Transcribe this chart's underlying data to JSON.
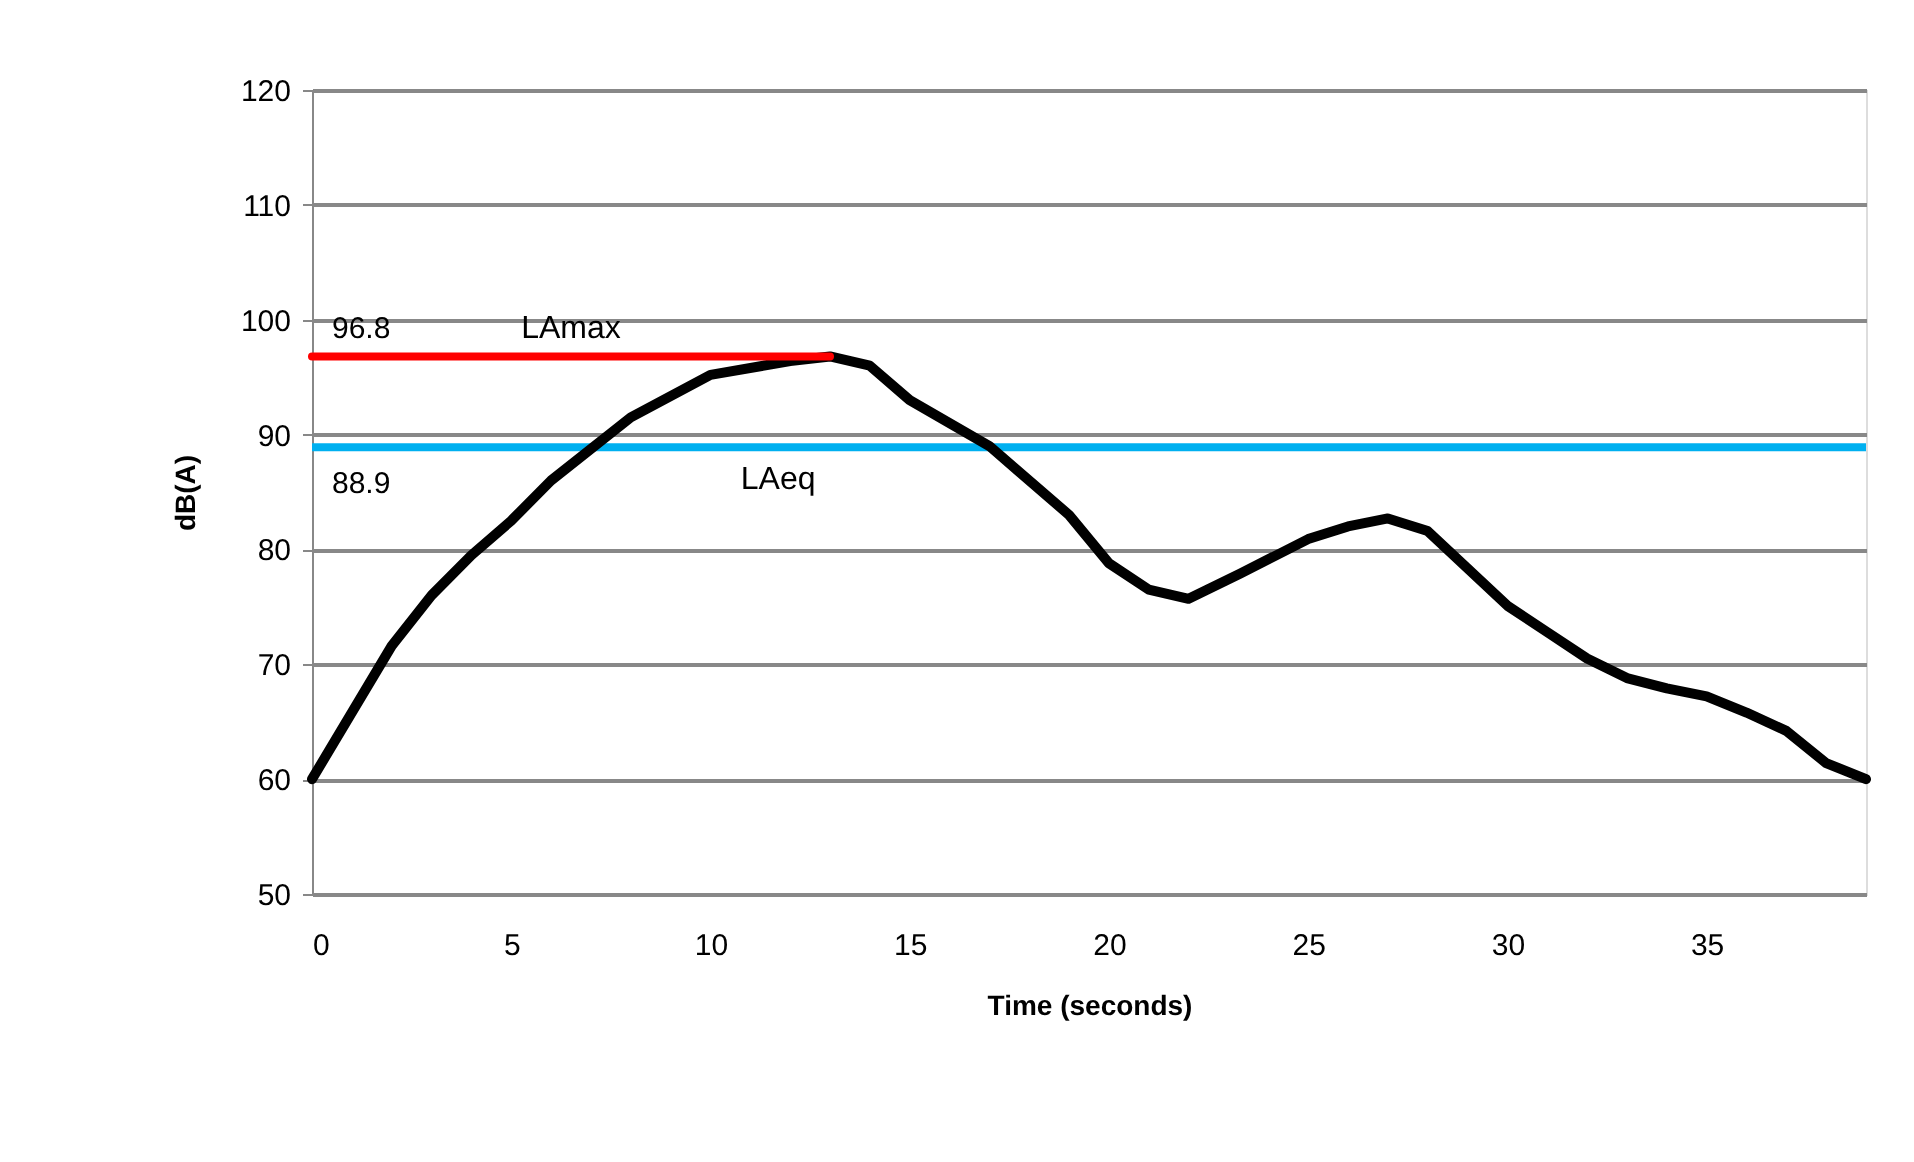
{
  "chart_data": {
    "type": "line",
    "xlabel": "Time (seconds)",
    "ylabel": "dB(A)",
    "xlim": [
      0,
      39
    ],
    "xticks": [
      0,
      5,
      10,
      15,
      20,
      25,
      30,
      35
    ],
    "ylim": [
      50,
      120
    ],
    "yticks": [
      50,
      60,
      70,
      80,
      90,
      100,
      110,
      120
    ],
    "grid": "y",
    "marker": "none",
    "line_style": "solid",
    "series": [
      {
        "color": "#000000",
        "x": [
          0,
          2,
          3,
          4,
          5,
          6,
          8,
          10,
          12,
          13,
          14,
          15,
          17,
          19,
          20,
          21,
          22,
          23.3,
          25,
          26,
          27,
          28,
          30,
          31,
          32,
          33,
          34,
          35,
          36,
          37,
          38,
          39
        ],
        "values": [
          60,
          71.6,
          76,
          79.5,
          82.5,
          86,
          91.5,
          95.2,
          96.4,
          96.8,
          96,
          93,
          89,
          83,
          78.8,
          76.5,
          75.7,
          77.9,
          80.9,
          82,
          82.7,
          81.6,
          75.1,
          72.8,
          70.5,
          68.8,
          67.9,
          67.2,
          65.8,
          64.2,
          61.4,
          60
        ]
      },
      {
        "name": "LAmax",
        "type": "line",
        "color": "#ff0000",
        "x": [
          0,
          13
        ],
        "values": [
          96.8,
          96.8
        ]
      }
    ],
    "ref_lines": [
      {
        "axis": "y",
        "value": 88.9,
        "label": "LAeq",
        "color": "#00b0f0"
      }
    ],
    "annotations": [
      {
        "text": "96.8",
        "x": 0,
        "y": 96.8
      },
      {
        "text": "88.9",
        "x": 0,
        "y": 88.9
      }
    ]
  }
}
